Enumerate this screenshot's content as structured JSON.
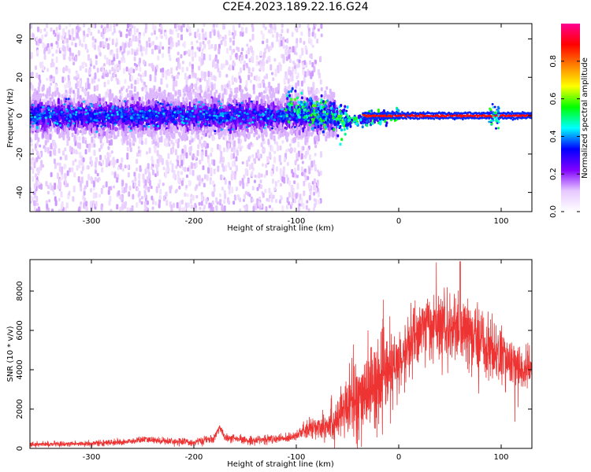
{
  "page_title": "C2E4.2023.189.22.16.G24",
  "chart_data": [
    {
      "type": "heatmap",
      "title": "C2E4.2023.189.22.16.G24",
      "xlabel": "Height of straight line (km)",
      "ylabel": "Frequency (Hz)",
      "xlim": [
        -360,
        130
      ],
      "ylim": [
        -50,
        48
      ],
      "x_ticks": [
        -300,
        -200,
        -100,
        0,
        100
      ],
      "y_ticks": [
        -40,
        -20,
        0,
        20,
        40
      ],
      "x_tick_labels": [
        "-300",
        "-200",
        "-100",
        "0",
        "100"
      ],
      "y_tick_labels": [
        "-40",
        "-20",
        "0",
        "20",
        "40"
      ],
      "colorbar": {
        "label": "Normalized spectral amplitude",
        "range": [
          0,
          1
        ],
        "ticks": [
          0.0,
          0.2,
          0.4,
          0.6,
          0.8
        ],
        "tick_labels": [
          "0.0",
          "0.2",
          "0.4",
          "0.6",
          "0.8"
        ],
        "colors": [
          "#ffffff",
          "#e6c8ff",
          "#8000ff",
          "#0000ff",
          "#00ffff",
          "#00ff00",
          "#ffff00",
          "#ff8000",
          "#ff0000",
          "#ff0090"
        ]
      },
      "features": {
        "scatter_region_x": [
          -360,
          -75
        ],
        "dense_band_center_hz": 0,
        "dense_band_halfwidth_hz": 10,
        "narrow_line_x": [
          0,
          130
        ],
        "narrow_line_hz": 0
      },
      "grid": false
    },
    {
      "type": "line",
      "xlabel": "Height of straight line (km)",
      "ylabel": "SNR (10 * v/v)",
      "xlim": [
        -360,
        130
      ],
      "ylim": [
        0,
        9600
      ],
      "x_ticks": [
        -300,
        -200,
        -100,
        0,
        100
      ],
      "y_ticks": [
        0,
        2000,
        4000,
        6000,
        8000
      ],
      "x_tick_labels": [
        "-300",
        "-200",
        "-100",
        "0",
        "100"
      ],
      "y_tick_labels": [
        "0",
        "2000",
        "4000",
        "6000",
        "8000"
      ],
      "series_color": "#ee3333",
      "envelope": {
        "x": [
          -360,
          -300,
          -260,
          -250,
          -200,
          -180,
          -175,
          -170,
          -150,
          -110,
          -100,
          -80,
          -60,
          -50,
          -40,
          -30,
          -20,
          -10,
          0,
          10,
          20,
          30,
          40,
          50,
          60,
          70,
          80,
          90,
          100,
          110,
          120,
          130
        ],
        "y": [
          200,
          250,
          350,
          450,
          300,
          500,
          1100,
          550,
          400,
          500,
          700,
          1100,
          1500,
          2000,
          2600,
          3000,
          3300,
          3800,
          4200,
          5200,
          6000,
          6300,
          6200,
          6000,
          5900,
          5800,
          5500,
          5000,
          4700,
          4300,
          4000,
          4000
        ]
      },
      "noise_sd": {
        "x": [
          -360,
          -100,
          -60,
          -40,
          -20,
          0,
          40,
          80,
          130
        ],
        "y": [
          60,
          120,
          600,
          1100,
          1100,
          900,
          900,
          900,
          500
        ]
      },
      "grid": false
    }
  ]
}
